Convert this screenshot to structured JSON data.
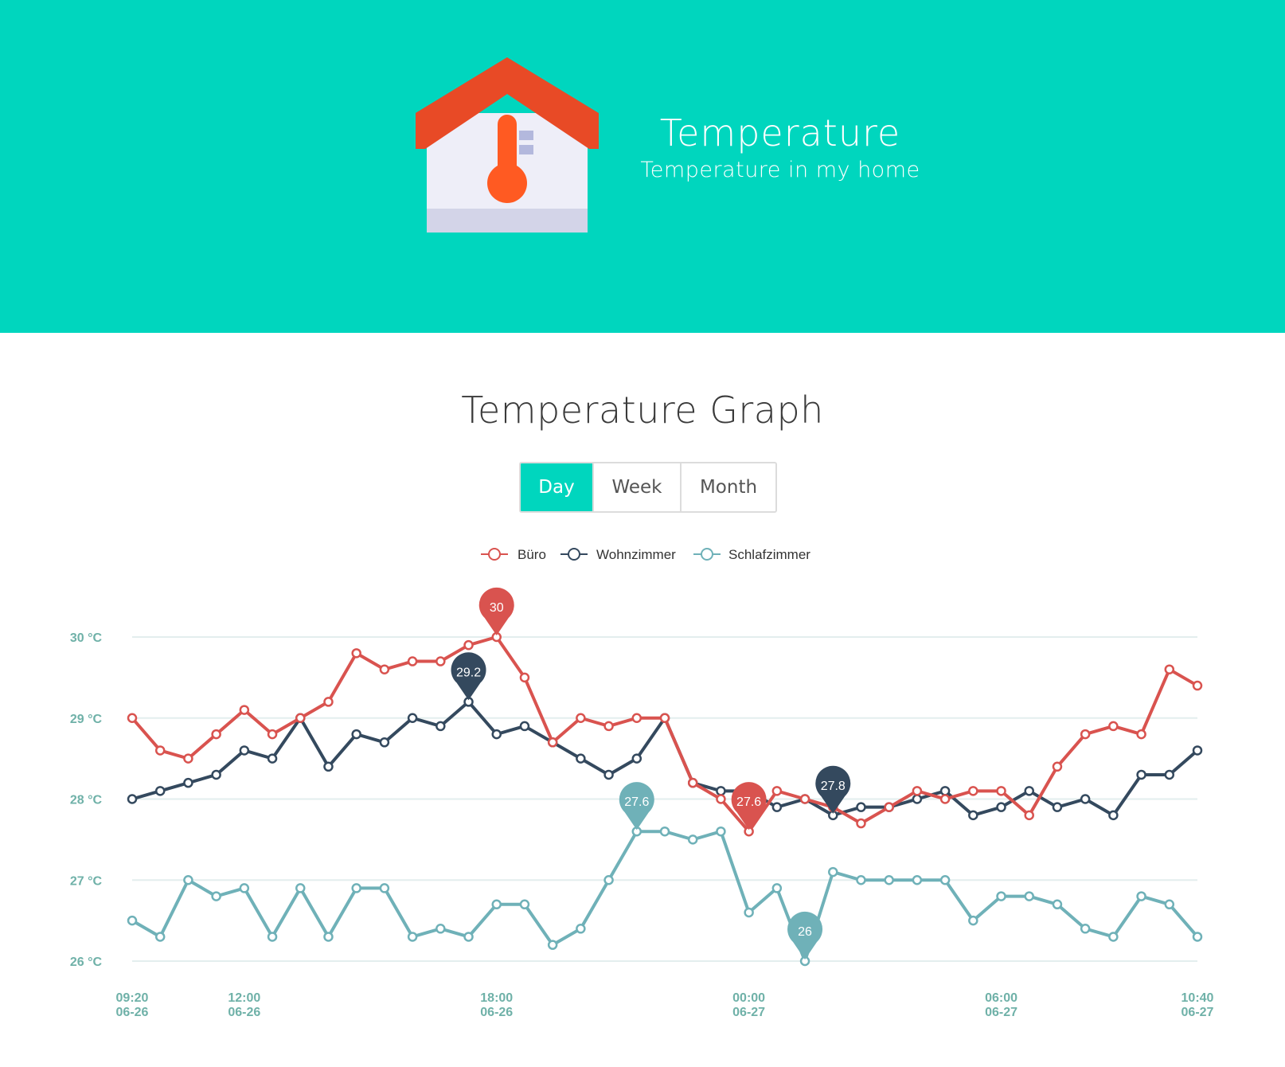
{
  "header": {
    "title": "Temperature",
    "subtitle": "Temperature in my home",
    "background_color": "#00d6be",
    "icon": "house-thermometer-icon"
  },
  "graph_title": "Temperature Graph",
  "tabs": [
    {
      "label": "Day",
      "active": true
    },
    {
      "label": "Week",
      "active": false
    },
    {
      "label": "Month",
      "active": false
    }
  ],
  "chart_data": {
    "type": "line",
    "legend_position": "top-center",
    "grid": true,
    "ylim": [
      26,
      30
    ],
    "yticks": [
      {
        "value": 30,
        "label": "30 °C"
      },
      {
        "value": 29,
        "label": "29 °C"
      },
      {
        "value": 28,
        "label": "28 °C"
      },
      {
        "value": 27,
        "label": "27 °C"
      },
      {
        "value": 26,
        "label": "26 °C"
      }
    ],
    "xticks": [
      {
        "index": 0,
        "time": "09:20",
        "date": "06-26"
      },
      {
        "index": 4,
        "time": "12:00",
        "date": "06-26"
      },
      {
        "index": 13,
        "time": "18:00",
        "date": "06-26"
      },
      {
        "index": 22,
        "time": "00:00",
        "date": "06-27"
      },
      {
        "index": 31,
        "time": "06:00",
        "date": "06-27"
      },
      {
        "index": 38,
        "time": "10:40",
        "date": "06-27"
      }
    ],
    "series": [
      {
        "name": "Büro",
        "color": "#d9534f",
        "values": [
          29.0,
          28.6,
          28.5,
          28.8,
          29.1,
          28.8,
          29.0,
          29.2,
          29.8,
          29.6,
          29.7,
          29.7,
          29.9,
          30.0,
          29.5,
          28.7,
          29.0,
          28.9,
          29.0,
          29.0,
          28.2,
          28.0,
          27.6,
          28.1,
          28.0,
          27.9,
          27.7,
          27.9,
          28.1,
          28.0,
          28.1,
          28.1,
          27.8,
          28.4,
          28.8,
          28.9,
          28.8,
          29.6,
          29.4
        ],
        "markers": [
          {
            "index": 13,
            "label": "30"
          },
          {
            "index": 22,
            "label": "27.6"
          }
        ]
      },
      {
        "name": "Wohnzimmer",
        "color": "#34495e",
        "values": [
          28.0,
          28.1,
          28.2,
          28.3,
          28.6,
          28.5,
          29.0,
          28.4,
          28.8,
          28.7,
          29.0,
          28.9,
          29.2,
          28.8,
          28.9,
          28.7,
          28.5,
          28.3,
          28.5,
          29.0,
          28.2,
          28.1,
          28.1,
          27.9,
          28.0,
          27.8,
          27.9,
          27.9,
          28.0,
          28.1,
          27.8,
          27.9,
          28.1,
          27.9,
          28.0,
          27.8,
          28.3,
          28.3,
          28.6
        ],
        "markers": [
          {
            "index": 12,
            "label": "29.2"
          },
          {
            "index": 25,
            "label": "27.8"
          }
        ]
      },
      {
        "name": "Schlafzimmer",
        "color": "#6fb1b8",
        "values": [
          26.5,
          26.3,
          27.0,
          26.8,
          26.9,
          26.3,
          26.9,
          26.3,
          26.9,
          26.9,
          26.3,
          26.4,
          26.3,
          26.7,
          26.7,
          26.2,
          26.4,
          27.0,
          27.6,
          27.6,
          27.5,
          27.6,
          26.6,
          26.9,
          26.0,
          27.1,
          27.0,
          27.0,
          27.0,
          27.0,
          26.5,
          26.8,
          26.8,
          26.7,
          26.4,
          26.3,
          26.8,
          26.7,
          26.3
        ],
        "markers": [
          {
            "index": 18,
            "label": "27.6"
          },
          {
            "index": 24,
            "label": "26"
          }
        ]
      }
    ]
  }
}
